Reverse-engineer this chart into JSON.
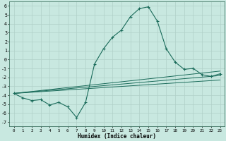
{
  "xlabel": "Humidex (Indice chaleur)",
  "bg_color": "#c8e8e0",
  "line_color": "#1a6b5a",
  "grid_color": "#b0d0c8",
  "xlim": [
    -0.5,
    23.5
  ],
  "ylim": [
    -7.5,
    6.5
  ],
  "xticks": [
    0,
    1,
    2,
    3,
    4,
    5,
    6,
    7,
    8,
    9,
    10,
    11,
    12,
    13,
    14,
    15,
    16,
    17,
    18,
    19,
    20,
    21,
    22,
    23
  ],
  "yticks": [
    -7,
    -6,
    -5,
    -4,
    -3,
    -2,
    -1,
    0,
    1,
    2,
    3,
    4,
    5,
    6
  ],
  "main_line": {
    "x": [
      0,
      1,
      2,
      3,
      4,
      5,
      6,
      7,
      8,
      9,
      10,
      11,
      12,
      13,
      14,
      15,
      16,
      17,
      18,
      19,
      20,
      21,
      22,
      23
    ],
    "y": [
      -3.8,
      -4.3,
      -4.6,
      -4.5,
      -5.1,
      -4.8,
      -5.3,
      -6.5,
      -4.8,
      -0.5,
      1.2,
      2.5,
      3.3,
      4.8,
      5.7,
      5.9,
      4.3,
      1.2,
      -0.3,
      -1.1,
      -1.0,
      -1.7,
      -1.9,
      -1.6
    ]
  },
  "reg_lines": [
    {
      "x": [
        0,
        23
      ],
      "y": [
        -3.8,
        -1.3
      ]
    },
    {
      "x": [
        0,
        23
      ],
      "y": [
        -3.8,
        -1.8
      ]
    },
    {
      "x": [
        0,
        23
      ],
      "y": [
        -3.8,
        -2.3
      ]
    }
  ]
}
